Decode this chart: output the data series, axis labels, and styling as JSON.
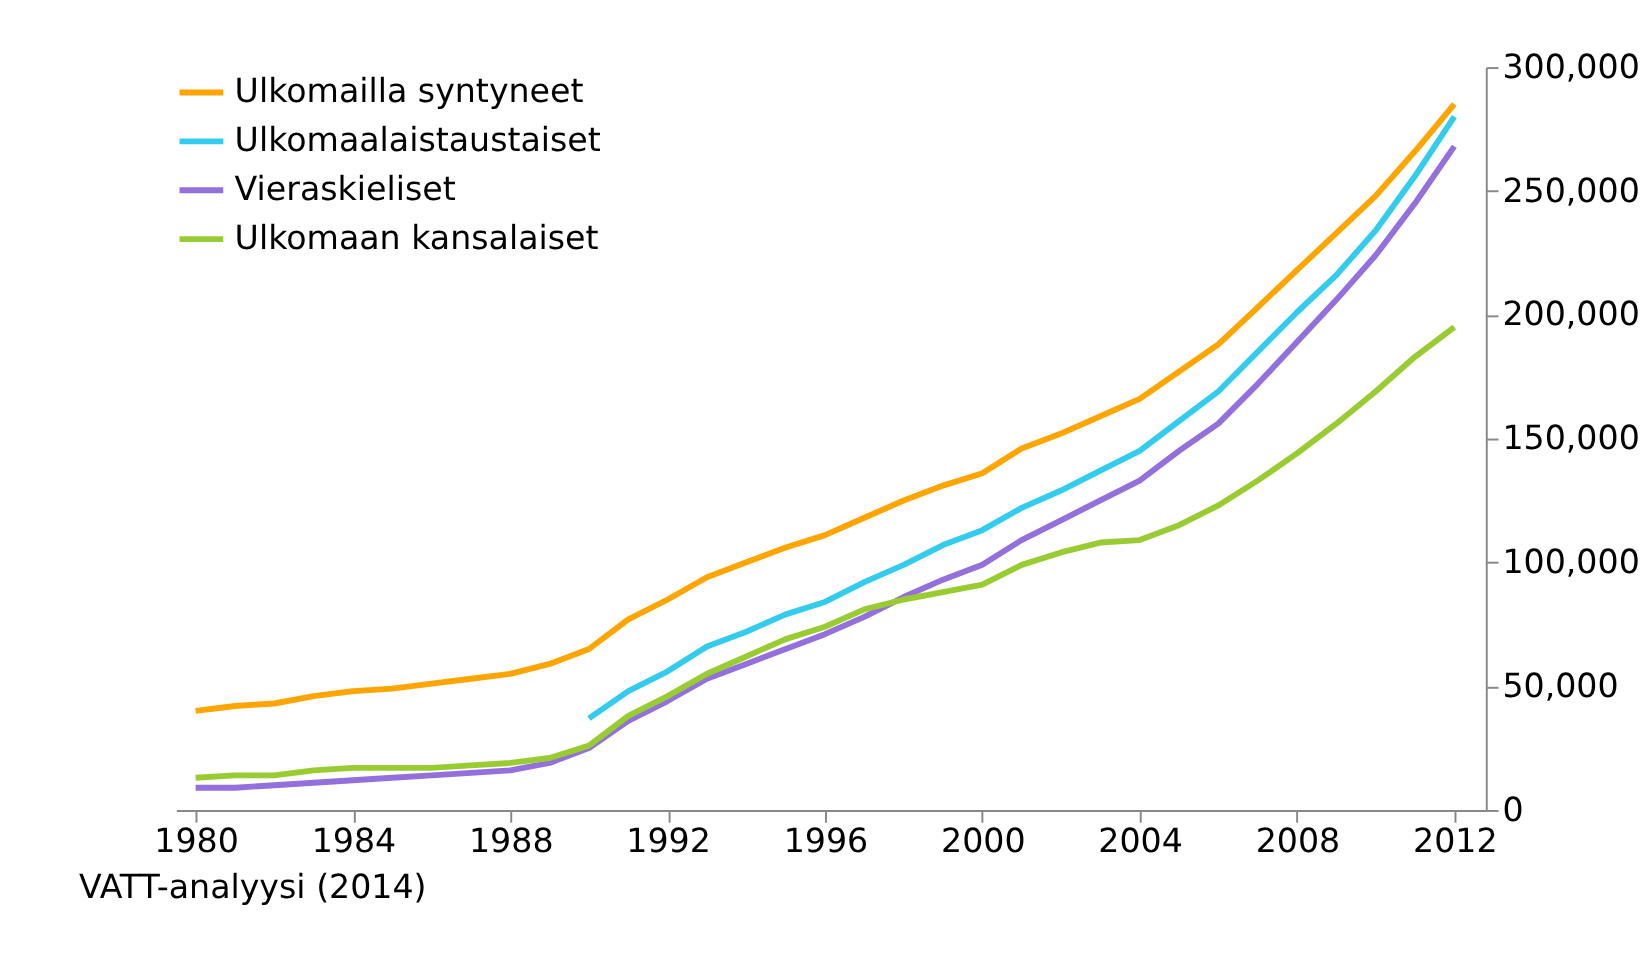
{
  "chart_data": {
    "type": "line",
    "x": [
      1980,
      1981,
      1982,
      1983,
      1984,
      1985,
      1986,
      1987,
      1988,
      1989,
      1990,
      1991,
      1992,
      1993,
      1994,
      1995,
      1996,
      1997,
      1998,
      1999,
      2000,
      2001,
      2002,
      2003,
      2004,
      2005,
      2006,
      2007,
      2008,
      2009,
      2010,
      2011,
      2012
    ],
    "series": [
      {
        "name": "Ulkomailla syntyneet",
        "color": "#ffa500",
        "values": [
          40000,
          42000,
          43000,
          46000,
          48000,
          49000,
          51000,
          53000,
          55000,
          59000,
          65000,
          77000,
          85000,
          94000,
          100000,
          106000,
          111000,
          118000,
          125000,
          131000,
          136000,
          146000,
          152000,
          159000,
          166000,
          177000,
          188000,
          203000,
          218000,
          233000,
          248000,
          266000,
          285000
        ]
      },
      {
        "name": "Ulkomaalaistaustaiset",
        "color": "#33ccee",
        "x": [
          1990,
          1991,
          1992,
          1993,
          1994,
          1995,
          1996,
          1997,
          1998,
          1999,
          2000,
          2001,
          2002,
          2003,
          2004,
          2005,
          2006,
          2007,
          2008,
          2009,
          2010,
          2011,
          2012
        ],
        "values": [
          37000,
          48000,
          56000,
          66000,
          72000,
          79000,
          84000,
          92000,
          99000,
          107000,
          113000,
          122000,
          129000,
          137000,
          145000,
          157000,
          169000,
          185000,
          201000,
          216000,
          234000,
          256000,
          280000
        ]
      },
      {
        "name": "Vieraskieliset",
        "color": "#9370db",
        "values": [
          9000,
          9000,
          10000,
          11000,
          12000,
          13000,
          14000,
          15000,
          16000,
          19000,
          25000,
          36000,
          44000,
          53000,
          59000,
          65000,
          71000,
          78000,
          86000,
          93000,
          99000,
          109000,
          117000,
          125000,
          133000,
          145000,
          156000,
          172000,
          189000,
          206000,
          224000,
          245000,
          268000
        ]
      },
      {
        "name": "Ulkomaan kansalaiset",
        "color": "#99cc33",
        "values": [
          13000,
          14000,
          14000,
          16000,
          17000,
          17000,
          17000,
          18000,
          19000,
          21000,
          26000,
          38000,
          46000,
          55000,
          62000,
          69000,
          74000,
          81000,
          85000,
          88000,
          91000,
          99000,
          104000,
          108000,
          109000,
          115000,
          123000,
          133000,
          144000,
          156000,
          169000,
          183000,
          195000
        ]
      }
    ],
    "xlim": [
      1979.5,
      2012.8
    ],
    "xticks": [
      1980,
      1984,
      1988,
      1992,
      1996,
      2000,
      2004,
      2008,
      2012
    ],
    "ylim": [
      0,
      300000
    ],
    "yticks": [
      0,
      {
        "value": 50000,
        "label": "50,000"
      },
      {
        "value": 100000,
        "label": "100,000"
      },
      {
        "value": 150000,
        "label": "150,000"
      },
      {
        "value": 200000,
        "label": "200,000"
      },
      {
        "value": 250000,
        "label": "250,000"
      },
      {
        "value": 300000,
        "label": "300,000"
      }
    ],
    "grid": false,
    "legend": "top left",
    "marker": "none",
    "line_style": "solid",
    "annotations": [
      "VATT-analyysi (2014)"
    ]
  }
}
